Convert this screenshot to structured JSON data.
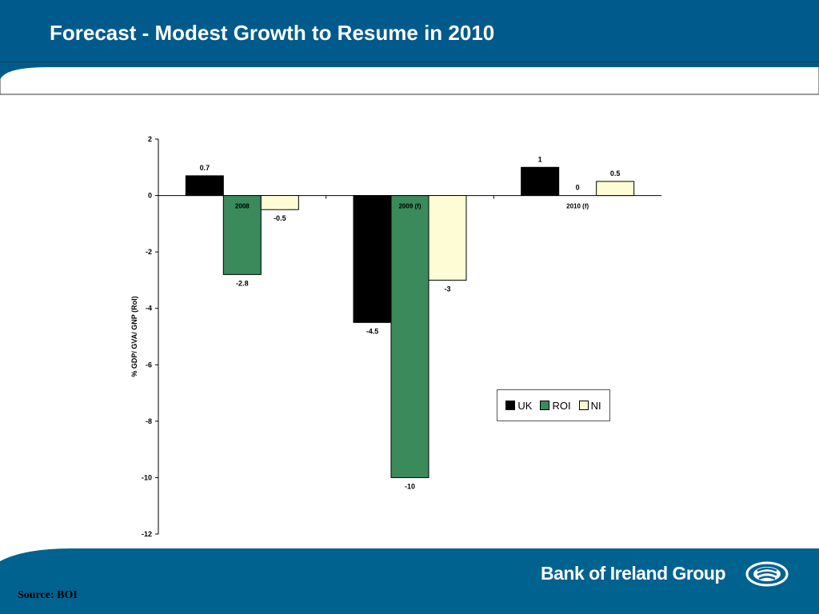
{
  "slide": {
    "title": "Forecast -  Modest Growth to Resume in 2010",
    "source": "Source: BOI",
    "brand": "Bank of Ireland Group"
  },
  "colors": {
    "header_blue": "#005a8c",
    "footer_blue": "#00628f",
    "uk": "#000000",
    "roi": "#3a8a5c",
    "ni": "#fefcd4"
  },
  "chart_data": {
    "type": "bar",
    "categories": [
      "2008",
      "2009 (f)",
      "2010 (f)"
    ],
    "series": [
      {
        "name": "UK",
        "values": [
          0.7,
          -4.5,
          1
        ],
        "color": "#000000"
      },
      {
        "name": "ROI",
        "values": [
          -2.8,
          -10,
          0
        ],
        "color": "#3a8a5c"
      },
      {
        "name": "NI",
        "values": [
          -0.5,
          -3,
          0.5
        ],
        "color": "#fefcd4"
      }
    ],
    "ylabel": "% GDP/ GVA/ GNP (RoI)",
    "ylim": [
      -12,
      2
    ],
    "yticks": [
      2,
      0,
      -2,
      -4,
      -6,
      -8,
      -10,
      -12
    ],
    "legend_position": "right",
    "grid": false
  }
}
